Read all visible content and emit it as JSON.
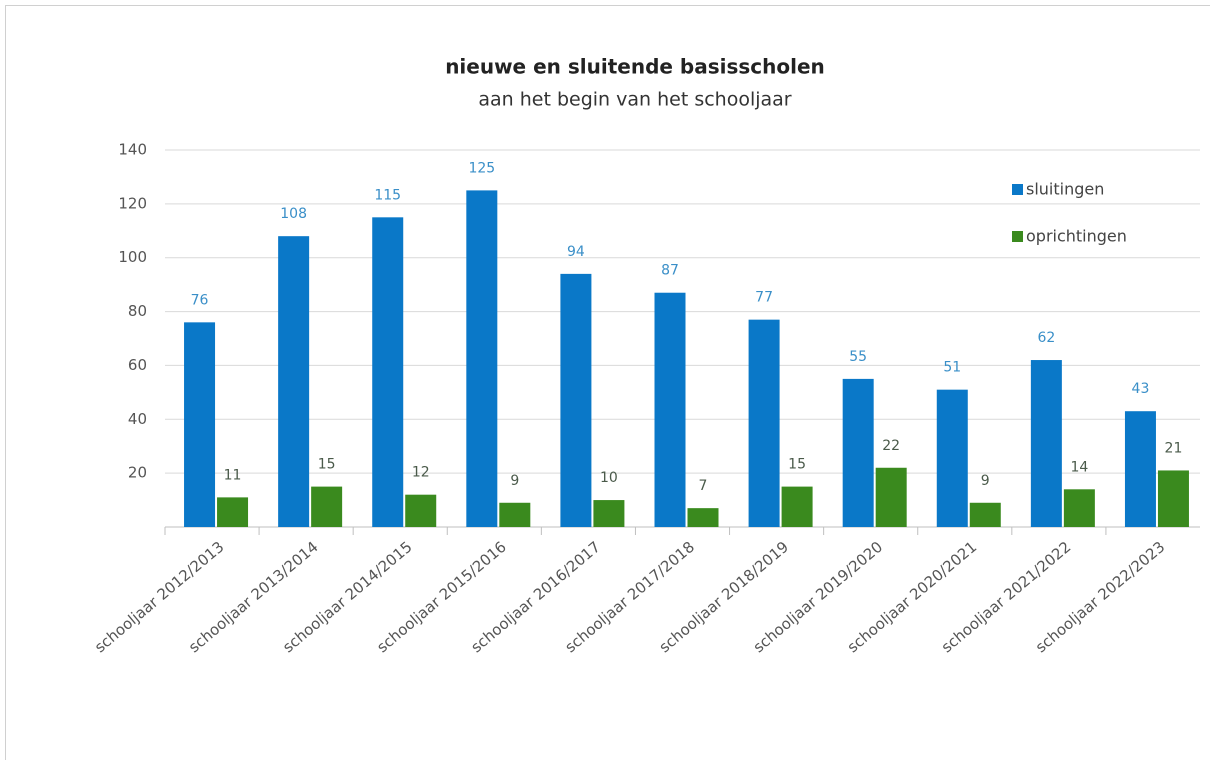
{
  "chart_data": {
    "type": "bar",
    "title": "nieuwe en sluitende basisscholen",
    "subtitle": "aan het begin van het schooljaar",
    "categories": [
      "schooljaar 2012/2013",
      "schooljaar 2013/2014",
      "schooljaar 2014/2015",
      "schooljaar 2015/2016",
      "schooljaar 2016/2017",
      "schooljaar 2017/2018",
      "schooljaar 2018/2019",
      "schooljaar 2019/2020",
      "schooljaar 2020/2021",
      "schooljaar 2021/2022",
      "schooljaar 2022/2023"
    ],
    "series": [
      {
        "name": "sluitingen",
        "color": "#0a78c8",
        "values": [
          76,
          108,
          115,
          125,
          94,
          87,
          77,
          55,
          51,
          62,
          43
        ]
      },
      {
        "name": "oprichtingen",
        "color": "#3a8a1e",
        "values": [
          11,
          15,
          12,
          9,
          10,
          7,
          15,
          22,
          9,
          14,
          21
        ]
      }
    ],
    "ylim": [
      0,
      140
    ],
    "yticks": [
      20,
      40,
      60,
      80,
      100,
      120,
      140
    ],
    "grid": true,
    "legend": "top-right"
  }
}
